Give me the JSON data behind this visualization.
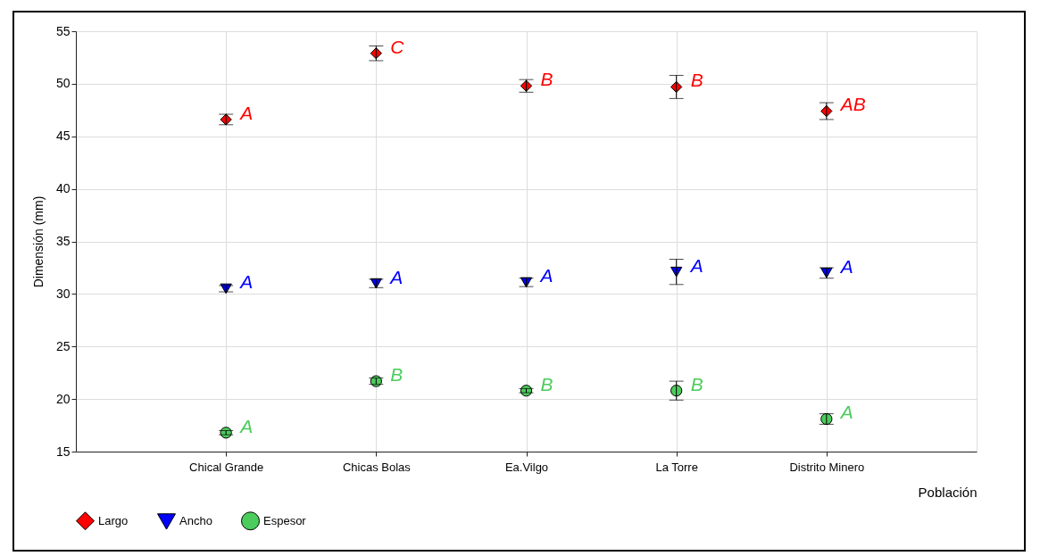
{
  "chart_data": {
    "type": "scatter",
    "categories": [
      "Chical Grande",
      "Chicas Bolas",
      "Ea.Vilgo",
      "La Torre",
      "Distrito Minero"
    ],
    "xlabel": "Población",
    "ylabel": "Dimensión (mm)",
    "ylim": [
      15,
      55
    ],
    "yticks": [
      15,
      20,
      25,
      30,
      35,
      40,
      45,
      50,
      55
    ],
    "grid": true,
    "legend": "bottom",
    "series": [
      {
        "name": "Largo",
        "color": "#ff0000",
        "marker": "diamond",
        "values": [
          46.6,
          52.9,
          49.8,
          49.7,
          47.4
        ],
        "errors": [
          0.5,
          0.7,
          0.6,
          1.1,
          0.8
        ],
        "value_labels": [
          "A",
          "C",
          "B",
          "B",
          "AB"
        ]
      },
      {
        "name": "Ancho",
        "color": "#0000ff",
        "marker": "triangle",
        "values": [
          30.5,
          31.0,
          31.1,
          32.1,
          32.0
        ],
        "errors": [
          0.3,
          0.4,
          0.4,
          1.2,
          0.5
        ],
        "value_labels": [
          "A",
          "A",
          "A",
          "A",
          "A"
        ]
      },
      {
        "name": "Espesor",
        "color": "#4ccc5c",
        "marker": "circle",
        "values": [
          16.8,
          21.7,
          20.8,
          20.8,
          18.1
        ],
        "errors": [
          0.2,
          0.3,
          0.2,
          0.9,
          0.5
        ],
        "value_labels": [
          "A",
          "B",
          "B",
          "B",
          "A"
        ]
      }
    ]
  }
}
